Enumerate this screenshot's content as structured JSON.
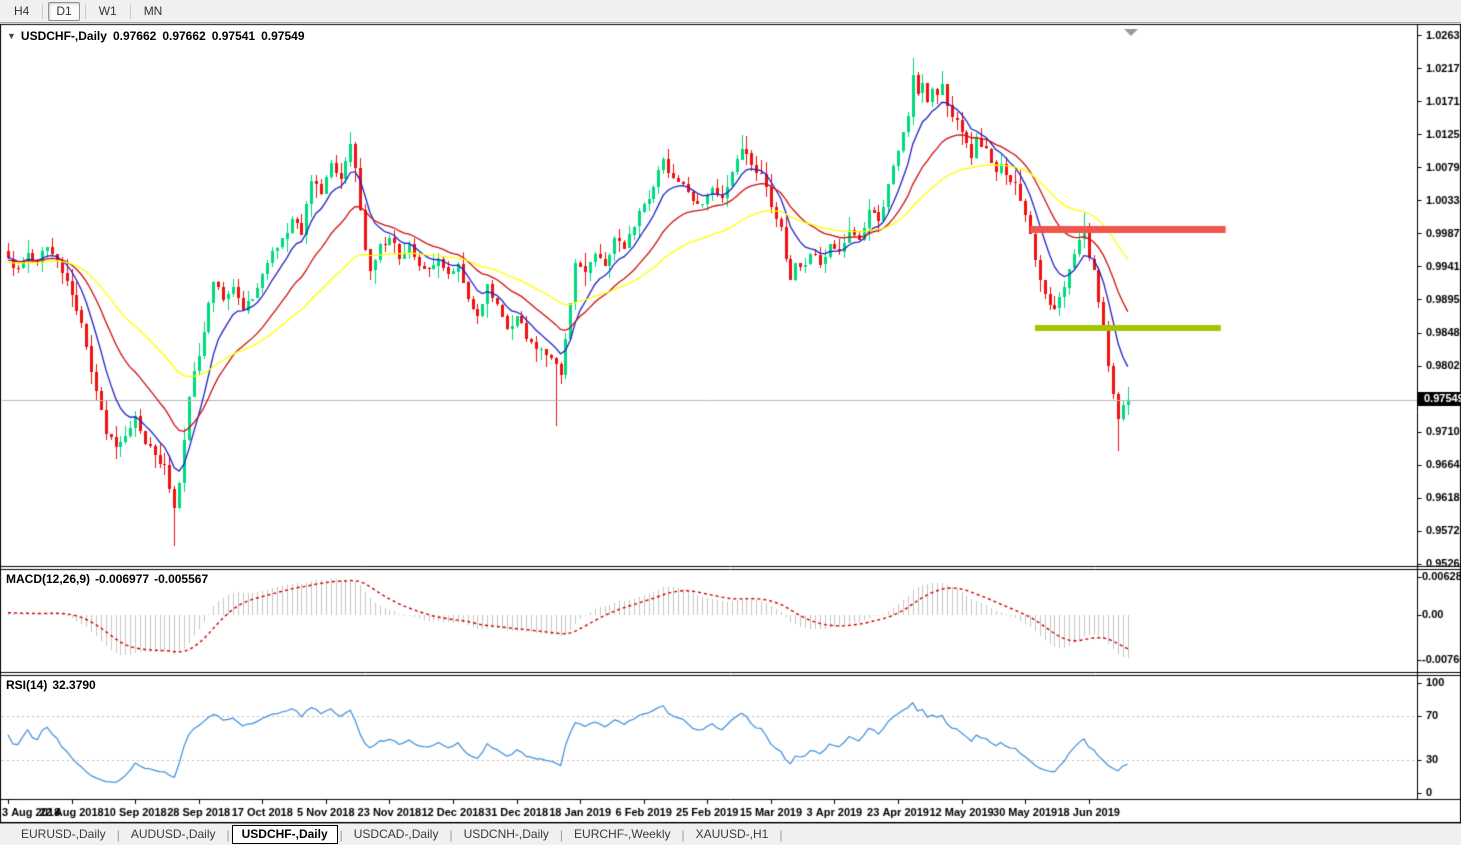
{
  "toolbar": {
    "timeframes": [
      {
        "label": "H4",
        "active": false
      },
      {
        "label": "D1",
        "active": true
      },
      {
        "label": "W1",
        "active": false
      },
      {
        "label": "MN",
        "active": false
      }
    ]
  },
  "chart": {
    "collapse_icon": "▼",
    "title": "USDCHF-,Daily",
    "quotes": {
      "open": "0.97662",
      "high": "0.97662",
      "low": "0.97541",
      "close": "0.97549"
    }
  },
  "tabs": {
    "separator": "|",
    "active_index": 2,
    "items": [
      {
        "label": "EURUSD-,Daily"
      },
      {
        "label": "AUDUSD-,Daily"
      },
      {
        "label": "USDCHF-,Daily"
      },
      {
        "label": "USDCAD-,Daily"
      },
      {
        "label": "USDCNH-,Daily"
      },
      {
        "label": "EURCHF-,Weekly"
      },
      {
        "label": "XAUUSD-,H1"
      }
    ]
  },
  "chart_data": {
    "type": "candlestick",
    "symbol": "USDCHF-",
    "timeframe": "Daily",
    "current_ohlc": {
      "open": 0.97662,
      "high": 0.97662,
      "low": 0.97541,
      "close": 0.97549
    },
    "candle_count": 230,
    "price_axis": {
      "max": 1.0263,
      "step": 0.0046,
      "labels": [
        "1.02630",
        "1.02170",
        "1.01710",
        "1.01250",
        "1.00790",
        "1.00330",
        "0.99870",
        "0.99410",
        "0.98950",
        "0.98480",
        "0.98020",
        "0.97100",
        "0.96640",
        "0.96180",
        "0.95720",
        "0.95260"
      ],
      "current_price_label": "0.97549",
      "current_price": 0.97549
    },
    "x_axis": {
      "candles_per_tick": 13,
      "date_labels": [
        "3 Aug 2018",
        "22 Aug 2018",
        "10 Sep 2018",
        "28 Sep 2018",
        "17 Oct 2018",
        "5 Nov 2018",
        "23 Nov 2018",
        "12 Dec 2018",
        "31 Dec 2018",
        "18 Jan 2019",
        "6 Feb 2019",
        "25 Feb 2019",
        "15 Mar 2019",
        "3 Apr 2019",
        "23 Apr 2019",
        "12 May 2019",
        "30 May 2019",
        "18 Jun 2019"
      ]
    },
    "price_path_anchors": [
      [
        0,
        0.9952
      ],
      [
        2,
        0.9938
      ],
      [
        4,
        0.996
      ],
      [
        6,
        0.9945
      ],
      [
        8,
        0.9968
      ],
      [
        10,
        0.995
      ],
      [
        12,
        0.9921
      ],
      [
        14,
        0.988
      ],
      [
        16,
        0.983
      ],
      [
        18,
        0.9768
      ],
      [
        20,
        0.9708
      ],
      [
        22,
        0.969
      ],
      [
        24,
        0.9705
      ],
      [
        26,
        0.9733
      ],
      [
        28,
        0.9694
      ],
      [
        30,
        0.9678
      ],
      [
        32,
        0.9665
      ],
      [
        34,
        0.9605
      ],
      [
        35,
        0.964
      ],
      [
        36,
        0.97
      ],
      [
        37,
        0.976
      ],
      [
        38,
        0.9796
      ],
      [
        40,
        0.985
      ],
      [
        42,
        0.992
      ],
      [
        44,
        0.9895
      ],
      [
        46,
        0.9912
      ],
      [
        48,
        0.988
      ],
      [
        50,
        0.9896
      ],
      [
        52,
        0.993
      ],
      [
        54,
        0.9963
      ],
      [
        56,
        0.998
      ],
      [
        58,
        1.0007
      ],
      [
        60,
        0.9985
      ],
      [
        62,
        1.006
      ],
      [
        64,
        1.0042
      ],
      [
        66,
        1.0085
      ],
      [
        68,
        1.0062
      ],
      [
        70,
        1.0112
      ],
      [
        71,
        1.0078
      ],
      [
        72,
        1.002
      ],
      [
        73,
        0.9965
      ],
      [
        74,
        0.9935
      ],
      [
        76,
        0.9972
      ],
      [
        78,
        0.998
      ],
      [
        80,
        0.9952
      ],
      [
        82,
        0.9972
      ],
      [
        84,
        0.9942
      ],
      [
        86,
        0.9937
      ],
      [
        88,
        0.9952
      ],
      [
        90,
        0.993
      ],
      [
        92,
        0.9945
      ],
      [
        94,
        0.9895
      ],
      [
        96,
        0.9872
      ],
      [
        98,
        0.9916
      ],
      [
        100,
        0.9888
      ],
      [
        102,
        0.9854
      ],
      [
        104,
        0.9872
      ],
      [
        106,
        0.984
      ],
      [
        108,
        0.9826
      ],
      [
        110,
        0.9818
      ],
      [
        112,
        0.9805
      ],
      [
        113,
        0.979
      ],
      [
        114,
        0.984
      ],
      [
        115,
        0.989
      ],
      [
        116,
        0.9946
      ],
      [
        118,
        0.9932
      ],
      [
        120,
        0.9958
      ],
      [
        122,
        0.9942
      ],
      [
        124,
        0.998
      ],
      [
        126,
        0.9966
      ],
      [
        128,
        0.9996
      ],
      [
        130,
        1.0028
      ],
      [
        132,
        1.0052
      ],
      [
        134,
        1.009
      ],
      [
        136,
        1.0064
      ],
      [
        138,
        1.0056
      ],
      [
        140,
        1.0032
      ],
      [
        142,
        1.0028
      ],
      [
        144,
        1.005
      ],
      [
        146,
        1.0036
      ],
      [
        148,
        1.0072
      ],
      [
        150,
        1.0105
      ],
      [
        152,
        1.0082
      ],
      [
        154,
        1.007
      ],
      [
        156,
        1.0024
      ],
      [
        158,
        0.9996
      ],
      [
        159,
        0.9952
      ],
      [
        160,
        0.9923
      ],
      [
        161,
        0.9946
      ],
      [
        162,
        0.994
      ],
      [
        164,
        0.9958
      ],
      [
        166,
        0.9944
      ],
      [
        168,
        0.9972
      ],
      [
        170,
        0.9962
      ],
      [
        172,
        0.9992
      ],
      [
        174,
        0.9978
      ],
      [
        176,
        1.002
      ],
      [
        178,
        1.0004
      ],
      [
        180,
        1.0056
      ],
      [
        182,
        1.0102
      ],
      [
        184,
        1.015
      ],
      [
        185,
        1.0208
      ],
      [
        186,
        1.0182
      ],
      [
        187,
        1.0196
      ],
      [
        188,
        1.017
      ],
      [
        189,
        1.0188
      ],
      [
        190,
        1.018
      ],
      [
        191,
        1.0195
      ],
      [
        192,
        1.0165
      ],
      [
        193,
        1.0148
      ],
      [
        194,
        1.0145
      ],
      [
        195,
        1.0128
      ],
      [
        196,
        1.0112
      ],
      [
        197,
        1.0092
      ],
      [
        198,
        1.012
      ],
      [
        199,
        1.0108
      ],
      [
        200,
        1.0105
      ],
      [
        201,
        1.0086
      ],
      [
        202,
        1.0072
      ],
      [
        203,
        1.0084
      ],
      [
        204,
        1.0068
      ],
      [
        205,
        1.0058
      ],
      [
        206,
        1.0056
      ],
      [
        207,
        1.0032
      ],
      [
        208,
        1.0012
      ],
      [
        209,
        0.9986
      ],
      [
        210,
        0.995
      ],
      [
        211,
        0.9922
      ],
      [
        212,
        0.9903
      ],
      [
        213,
        0.9888
      ],
      [
        214,
        0.9882
      ],
      [
        215,
        0.9898
      ],
      [
        216,
        0.9912
      ],
      [
        217,
        0.9938
      ],
      [
        218,
        0.9958
      ],
      [
        219,
        0.9978
      ],
      [
        220,
        0.9994
      ],
      [
        221,
        0.9952
      ],
      [
        222,
        0.9936
      ],
      [
        223,
        0.9892
      ],
      [
        224,
        0.9855
      ],
      [
        225,
        0.9802
      ],
      [
        226,
        0.9763
      ],
      [
        227,
        0.9728
      ],
      [
        228,
        0.9748
      ],
      [
        229,
        0.97549
      ]
    ],
    "wick_extremes": [
      {
        "index": 34,
        "low": 0.9552
      },
      {
        "index": 70,
        "high": 1.0128
      },
      {
        "index": 112,
        "low": 0.9719
      },
      {
        "index": 150,
        "high": 1.0124
      },
      {
        "index": 185,
        "high": 1.0231
      },
      {
        "index": 220,
        "high": 1.0016
      },
      {
        "index": 227,
        "low": 0.9684
      }
    ],
    "moving_averages": [
      {
        "name": "fast",
        "period": 8,
        "color": "#2121c8"
      },
      {
        "name": "mid",
        "period": 20,
        "color": "#cc1212"
      },
      {
        "name": "slow",
        "period": 45,
        "color": "#ffff00"
      }
    ],
    "macd": {
      "label": "MACD(12,26,9)",
      "fast": 12,
      "slow": 26,
      "signal": 9,
      "value_label": "-0.006977",
      "signal_label": "-0.005567",
      "axis_labels": [
        "0.006285",
        "0.00",
        "-0.007609"
      ],
      "hist_color": "#c6c6c6",
      "signal_color": "#cc0000"
    },
    "rsi": {
      "label": "RSI(14)",
      "period": 14,
      "value_label": "32.3790",
      "axis_labels": [
        "100",
        "70",
        "30",
        "0"
      ],
      "levels": [
        70,
        30
      ],
      "color": "#3e8edd"
    },
    "levels": [
      {
        "name": "resistance",
        "price": 0.9993,
        "color": "#f0564c",
        "from_index": 209,
        "to_index": 249,
        "thickness": 7
      },
      {
        "name": "support",
        "price": 0.9856,
        "color": "#a4c404",
        "from_index": 210,
        "to_index": 248,
        "thickness": 6
      }
    ],
    "colors": {
      "bull": "#00da7f",
      "bear": "#ee1111",
      "pane_background": "#ffffff",
      "chrome": "#f0f0f0",
      "price_line": "#b8b8b8",
      "level_dash": "#bdbdbd",
      "axis_text": "#000000",
      "scroll_marker": "#9a9a9a"
    }
  }
}
